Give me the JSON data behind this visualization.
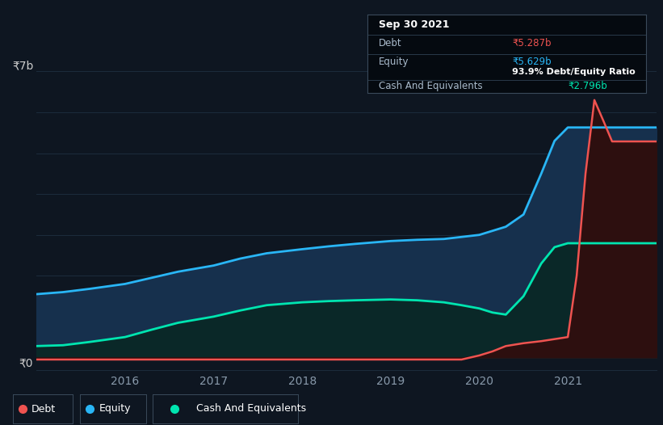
{
  "background_color": "#0e1621",
  "plot_bg_color": "#0e1621",
  "grid_color": "#1c2c3c",
  "title_box": {
    "date": "Sep 30 2021",
    "debt_label": "Debt",
    "debt_value": "₹5.287b",
    "equity_label": "Equity",
    "equity_value": "₹5.629b",
    "ratio_label": "93.9% Debt/Equity Ratio",
    "cash_label": "Cash And Equivalents",
    "cash_value": "₹2.796b",
    "debt_color": "#ef5350",
    "equity_color": "#29b6f6",
    "cash_color": "#00e5b0",
    "ratio_color": "#ffffff",
    "box_bg": "#050a10",
    "box_border": "#3a4a5a"
  },
  "y_label": "₹7b",
  "y_zero_label": "₹0",
  "x_ticks": [
    "2016",
    "2017",
    "2018",
    "2019",
    "2020",
    "2021"
  ],
  "equity_color": "#29b6f6",
  "debt_color": "#ef5350",
  "cash_color": "#00e5b0",
  "equity_fill": "#16304d",
  "cash_fill": "#0a2828",
  "debt_fill": "#2d0f0f",
  "legend": [
    {
      "label": "Debt",
      "color": "#ef5350"
    },
    {
      "label": "Equity",
      "color": "#29b6f6"
    },
    {
      "label": "Cash And Equivalents",
      "color": "#00e5b0"
    }
  ],
  "x_data": [
    0.0,
    0.3,
    0.6,
    1.0,
    1.3,
    1.6,
    2.0,
    2.3,
    2.6,
    3.0,
    3.3,
    3.6,
    4.0,
    4.3,
    4.6,
    4.8,
    5.0,
    5.15,
    5.3,
    5.5,
    5.7,
    5.85,
    6.0,
    6.1,
    6.2,
    6.3,
    6.4,
    6.5,
    6.6,
    6.7,
    6.85,
    7.0
  ],
  "equity_data": [
    1.55,
    1.6,
    1.68,
    1.8,
    1.95,
    2.1,
    2.25,
    2.42,
    2.55,
    2.65,
    2.72,
    2.78,
    2.85,
    2.88,
    2.9,
    2.95,
    3.0,
    3.1,
    3.2,
    3.5,
    4.5,
    5.3,
    5.629,
    5.629,
    5.629,
    5.629,
    5.629,
    5.629,
    5.629,
    5.629,
    5.629,
    5.629
  ],
  "cash_data": [
    0.28,
    0.3,
    0.38,
    0.5,
    0.68,
    0.85,
    1.0,
    1.15,
    1.28,
    1.35,
    1.38,
    1.4,
    1.42,
    1.4,
    1.35,
    1.28,
    1.2,
    1.1,
    1.05,
    1.5,
    2.3,
    2.7,
    2.796,
    2.796,
    2.796,
    2.796,
    2.796,
    2.796,
    2.796,
    2.796,
    2.796,
    2.796
  ],
  "debt_data": [
    -0.05,
    -0.05,
    -0.05,
    -0.05,
    -0.05,
    -0.05,
    -0.05,
    -0.05,
    -0.05,
    -0.05,
    -0.05,
    -0.05,
    -0.05,
    -0.05,
    -0.05,
    -0.05,
    0.05,
    0.15,
    0.28,
    0.35,
    0.4,
    0.45,
    0.5,
    2.0,
    4.5,
    6.3,
    5.8,
    5.287,
    5.287,
    5.287,
    5.287,
    5.287
  ],
  "ylim": [
    -0.3,
    7.5
  ],
  "xlim": [
    0.0,
    7.0
  ]
}
